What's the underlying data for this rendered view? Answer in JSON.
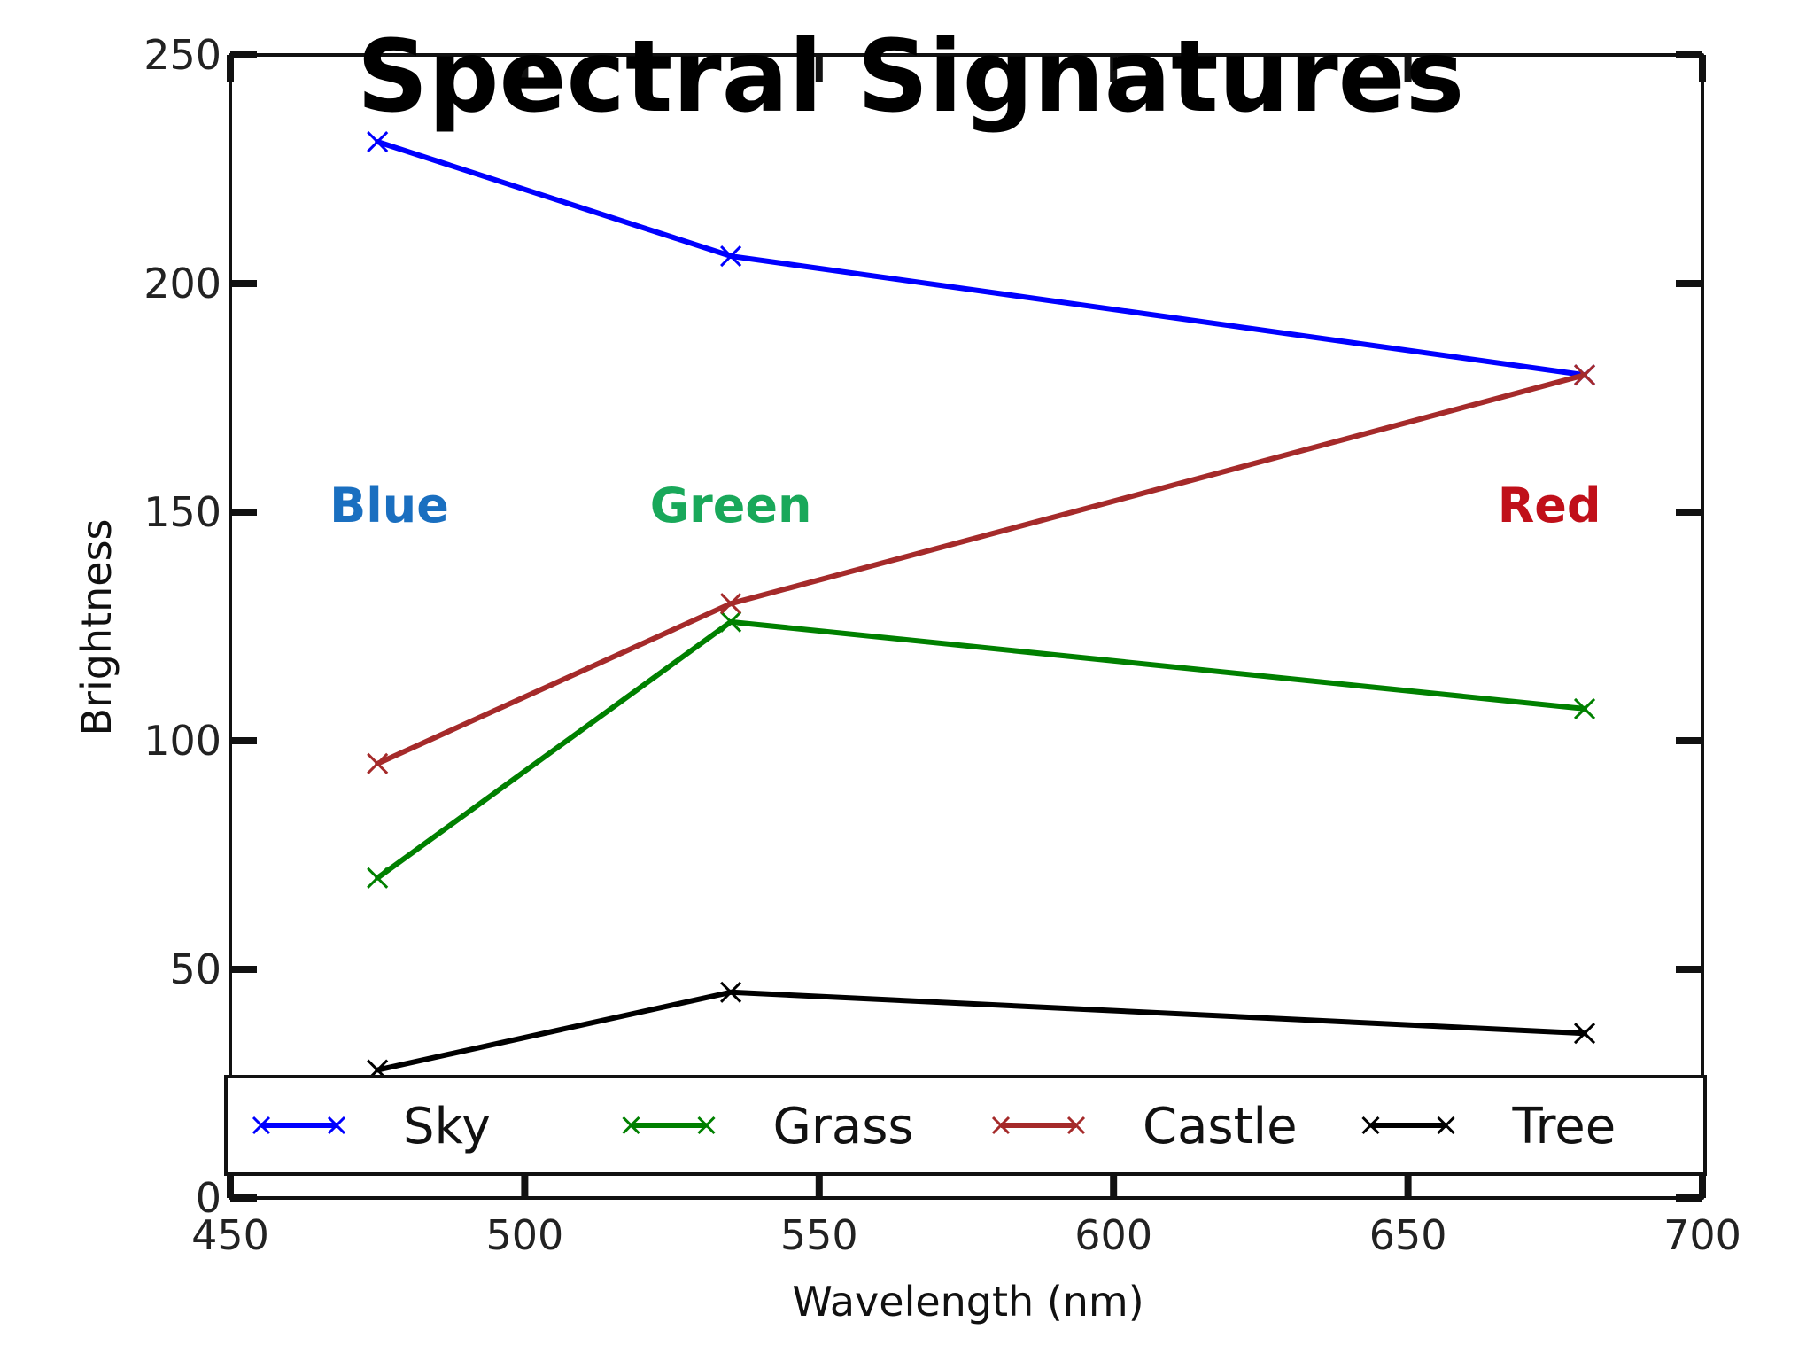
{
  "chart_data": {
    "type": "line",
    "title": "Spectral Signatures",
    "xlabel": "Wavelength (nm)",
    "ylabel": "Brightness",
    "xlim": [
      450,
      700
    ],
    "ylim": [
      0,
      250
    ],
    "xticks": [
      450,
      500,
      550,
      600,
      650,
      700
    ],
    "yticks": [
      0,
      50,
      100,
      150,
      200,
      250
    ],
    "grid": false,
    "legend_position": "bottom",
    "x": [
      475,
      535,
      680
    ],
    "series": [
      {
        "name": "Sky",
        "values": [
          231,
          206,
          180
        ],
        "color": "#0000ff"
      },
      {
        "name": "Grass",
        "values": [
          70,
          126,
          107
        ],
        "color": "#008000"
      },
      {
        "name": "Castle",
        "values": [
          95,
          130,
          180
        ],
        "color": "#a52a2a"
      },
      {
        "name": "Tree",
        "values": [
          28,
          45,
          36
        ],
        "color": "#000000"
      }
    ],
    "annotations": [
      {
        "text": "Blue",
        "x": 477,
        "y": 144,
        "color": "#1a6fc0"
      },
      {
        "text": "Green",
        "x": 535,
        "y": 144,
        "color": "#19a85a"
      },
      {
        "text": "Red",
        "x": 674,
        "y": 144,
        "color": "#c0101a"
      }
    ]
  }
}
